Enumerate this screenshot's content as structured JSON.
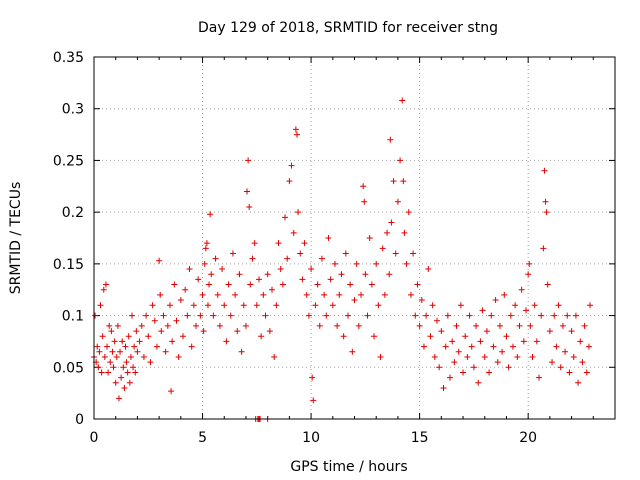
{
  "chart_data": {
    "type": "scatter",
    "title": "Day 129 of 2018, SRMTID for receiver stng",
    "xlabel": "GPS time / hours",
    "ylabel": "SRMTID / TECUs",
    "xlim": [
      0,
      24
    ],
    "ylim": [
      0,
      0.35
    ],
    "xticks": [
      0,
      5,
      10,
      15,
      20
    ],
    "yticks": [
      0,
      0.05,
      0.1,
      0.15,
      0.2,
      0.25,
      0.3,
      0.35
    ],
    "xtick_labels": [
      "0",
      "5",
      "10",
      "15",
      "20"
    ],
    "ytick_labels": [
      "0",
      "0.05",
      "0.1",
      "0.15",
      "0.2",
      "0.25",
      "0.3",
      "0.35"
    ],
    "grid": true,
    "legend": "none",
    "marker": "plus",
    "color": "#e00000",
    "series": [
      {
        "values": [
          [
            0.0,
            0.06
          ],
          [
            0.05,
            0.1
          ],
          [
            0.1,
            0.055
          ],
          [
            0.15,
            0.07
          ],
          [
            0.2,
            0.05
          ],
          [
            0.25,
            0.065
          ],
          [
            0.3,
            0.11
          ],
          [
            0.35,
            0.045
          ],
          [
            0.4,
            0.08
          ],
          [
            0.45,
            0.125
          ],
          [
            0.5,
            0.06
          ],
          [
            0.55,
            0.13
          ],
          [
            0.6,
            0.07
          ],
          [
            0.65,
            0.045
          ],
          [
            0.7,
            0.09
          ],
          [
            0.75,
            0.055
          ],
          [
            0.8,
            0.085
          ],
          [
            0.85,
            0.065
          ],
          [
            0.9,
            0.05
          ],
          [
            0.95,
            0.075
          ],
          [
            1.0,
            0.035
          ],
          [
            1.05,
            0.06
          ],
          [
            1.1,
            0.09
          ],
          [
            1.15,
            0.02
          ],
          [
            1.2,
            0.065
          ],
          [
            1.25,
            0.04
          ],
          [
            1.3,
            0.075
          ],
          [
            1.35,
            0.05
          ],
          [
            1.4,
            0.03
          ],
          [
            1.45,
            0.07
          ],
          [
            1.5,
            0.055
          ],
          [
            1.55,
            0.045
          ],
          [
            1.6,
            0.08
          ],
          [
            1.65,
            0.035
          ],
          [
            1.7,
            0.06
          ],
          [
            1.75,
            0.1
          ],
          [
            1.8,
            0.05
          ],
          [
            1.85,
            0.07
          ],
          [
            1.9,
            0.045
          ],
          [
            1.95,
            0.085
          ],
          [
            2.0,
            0.065
          ],
          [
            2.1,
            0.075
          ],
          [
            2.2,
            0.09
          ],
          [
            2.3,
            0.06
          ],
          [
            2.4,
            0.1
          ],
          [
            2.5,
            0.08
          ],
          [
            2.6,
            0.055
          ],
          [
            2.7,
            0.11
          ],
          [
            2.8,
            0.095
          ],
          [
            2.9,
            0.07
          ],
          [
            3.0,
            0.153
          ],
          [
            3.05,
            0.12
          ],
          [
            3.1,
            0.085
          ],
          [
            3.2,
            0.1
          ],
          [
            3.3,
            0.065
          ],
          [
            3.4,
            0.09
          ],
          [
            3.5,
            0.11
          ],
          [
            3.55,
            0.027
          ],
          [
            3.6,
            0.075
          ],
          [
            3.7,
            0.13
          ],
          [
            3.8,
            0.095
          ],
          [
            3.9,
            0.06
          ],
          [
            4.0,
            0.115
          ],
          [
            4.1,
            0.08
          ],
          [
            4.2,
            0.125
          ],
          [
            4.3,
            0.1
          ],
          [
            4.4,
            0.145
          ],
          [
            4.5,
            0.07
          ],
          [
            4.6,
            0.11
          ],
          [
            4.7,
            0.09
          ],
          [
            4.8,
            0.135
          ],
          [
            4.9,
            0.1
          ],
          [
            5.0,
            0.12
          ],
          [
            5.05,
            0.085
          ],
          [
            5.1,
            0.15
          ],
          [
            5.15,
            0.165
          ],
          [
            5.2,
            0.17
          ],
          [
            5.25,
            0.11
          ],
          [
            5.3,
            0.13
          ],
          [
            5.35,
            0.198
          ],
          [
            5.4,
            0.14
          ],
          [
            5.5,
            0.1
          ],
          [
            5.6,
            0.155
          ],
          [
            5.7,
            0.12
          ],
          [
            5.8,
            0.09
          ],
          [
            5.9,
            0.145
          ],
          [
            6.0,
            0.11
          ],
          [
            6.1,
            0.075
          ],
          [
            6.2,
            0.13
          ],
          [
            6.3,
            0.1
          ],
          [
            6.4,
            0.16
          ],
          [
            6.5,
            0.12
          ],
          [
            6.6,
            0.085
          ],
          [
            6.7,
            0.14
          ],
          [
            6.8,
            0.065
          ],
          [
            6.9,
            0.11
          ],
          [
            7.0,
            0.09
          ],
          [
            7.05,
            0.22
          ],
          [
            7.1,
            0.25
          ],
          [
            7.15,
            0.205
          ],
          [
            7.2,
            0.13
          ],
          [
            7.3,
            0.155
          ],
          [
            7.4,
            0.17
          ],
          [
            7.5,
            0.11
          ],
          [
            7.6,
            0.135
          ],
          [
            7.7,
            0.08
          ],
          [
            7.8,
            0.12
          ],
          [
            7.9,
            0.1
          ],
          [
            8.0,
            0.14
          ],
          [
            8.1,
            0.085
          ],
          [
            8.2,
            0.125
          ],
          [
            8.3,
            0.06
          ],
          [
            8.4,
            0.11
          ],
          [
            8.5,
            0.17
          ],
          [
            8.6,
            0.145
          ],
          [
            8.7,
            0.13
          ],
          [
            8.8,
            0.195
          ],
          [
            8.9,
            0.155
          ],
          [
            9.0,
            0.23
          ],
          [
            9.1,
            0.245
          ],
          [
            9.2,
            0.18
          ],
          [
            9.3,
            0.28
          ],
          [
            9.35,
            0.275
          ],
          [
            9.4,
            0.2
          ],
          [
            9.5,
            0.16
          ],
          [
            9.6,
            0.135
          ],
          [
            9.7,
            0.17
          ],
          [
            9.8,
            0.12
          ],
          [
            9.9,
            0.1
          ],
          [
            10.0,
            0.145
          ],
          [
            10.05,
            0.04
          ],
          [
            10.1,
            0.018
          ],
          [
            10.2,
            0.11
          ],
          [
            10.3,
            0.13
          ],
          [
            10.4,
            0.09
          ],
          [
            10.5,
            0.155
          ],
          [
            10.6,
            0.12
          ],
          [
            10.7,
            0.1
          ],
          [
            10.8,
            0.175
          ],
          [
            10.9,
            0.135
          ],
          [
            11.0,
            0.11
          ],
          [
            11.1,
            0.15
          ],
          [
            11.2,
            0.09
          ],
          [
            11.3,
            0.12
          ],
          [
            11.4,
            0.14
          ],
          [
            11.5,
            0.08
          ],
          [
            11.6,
            0.16
          ],
          [
            11.7,
            0.1
          ],
          [
            11.8,
            0.13
          ],
          [
            11.9,
            0.065
          ],
          [
            12.0,
            0.115
          ],
          [
            12.1,
            0.15
          ],
          [
            12.2,
            0.09
          ],
          [
            12.3,
            0.12
          ],
          [
            12.4,
            0.225
          ],
          [
            12.45,
            0.21
          ],
          [
            12.5,
            0.14
          ],
          [
            12.6,
            0.1
          ],
          [
            12.7,
            0.175
          ],
          [
            12.8,
            0.13
          ],
          [
            12.9,
            0.08
          ],
          [
            13.0,
            0.15
          ],
          [
            13.1,
            0.11
          ],
          [
            13.2,
            0.06
          ],
          [
            13.3,
            0.165
          ],
          [
            13.4,
            0.12
          ],
          [
            13.5,
            0.18
          ],
          [
            13.6,
            0.14
          ],
          [
            13.65,
            0.27
          ],
          [
            13.7,
            0.19
          ],
          [
            13.8,
            0.23
          ],
          [
            13.9,
            0.16
          ],
          [
            14.0,
            0.21
          ],
          [
            14.1,
            0.25
          ],
          [
            14.2,
            0.308
          ],
          [
            14.25,
            0.23
          ],
          [
            14.3,
            0.18
          ],
          [
            14.4,
            0.15
          ],
          [
            14.5,
            0.2
          ],
          [
            14.6,
            0.12
          ],
          [
            14.7,
            0.16
          ],
          [
            14.8,
            0.1
          ],
          [
            14.9,
            0.13
          ],
          [
            15.0,
            0.09
          ],
          [
            15.1,
            0.115
          ],
          [
            15.2,
            0.07
          ],
          [
            15.3,
            0.1
          ],
          [
            15.4,
            0.145
          ],
          [
            15.5,
            0.08
          ],
          [
            15.6,
            0.11
          ],
          [
            15.7,
            0.06
          ],
          [
            15.8,
            0.095
          ],
          [
            15.9,
            0.05
          ],
          [
            16.0,
            0.085
          ],
          [
            16.1,
            0.03
          ],
          [
            16.2,
            0.07
          ],
          [
            16.3,
            0.1
          ],
          [
            16.4,
            0.04
          ],
          [
            16.5,
            0.075
          ],
          [
            16.6,
            0.055
          ],
          [
            16.7,
            0.09
          ],
          [
            16.8,
            0.065
          ],
          [
            16.9,
            0.11
          ],
          [
            17.0,
            0.045
          ],
          [
            17.1,
            0.08
          ],
          [
            17.2,
            0.06
          ],
          [
            17.3,
            0.1
          ],
          [
            17.4,
            0.07
          ],
          [
            17.5,
            0.05
          ],
          [
            17.6,
            0.09
          ],
          [
            17.7,
            0.035
          ],
          [
            17.8,
            0.075
          ],
          [
            17.9,
            0.105
          ],
          [
            18.0,
            0.06
          ],
          [
            18.1,
            0.085
          ],
          [
            18.2,
            0.045
          ],
          [
            18.3,
            0.1
          ],
          [
            18.4,
            0.07
          ],
          [
            18.5,
            0.115
          ],
          [
            18.6,
            0.055
          ],
          [
            18.7,
            0.09
          ],
          [
            18.8,
            0.065
          ],
          [
            18.9,
            0.12
          ],
          [
            19.0,
            0.08
          ],
          [
            19.1,
            0.05
          ],
          [
            19.2,
            0.1
          ],
          [
            19.3,
            0.07
          ],
          [
            19.4,
            0.11
          ],
          [
            19.5,
            0.06
          ],
          [
            19.6,
            0.09
          ],
          [
            19.7,
            0.125
          ],
          [
            19.8,
            0.075
          ],
          [
            19.9,
            0.105
          ],
          [
            20.0,
            0.14
          ],
          [
            20.05,
            0.15
          ],
          [
            20.1,
            0.09
          ],
          [
            20.2,
            0.06
          ],
          [
            20.3,
            0.11
          ],
          [
            20.4,
            0.075
          ],
          [
            20.5,
            0.04
          ],
          [
            20.6,
            0.1
          ],
          [
            20.7,
            0.165
          ],
          [
            20.75,
            0.24
          ],
          [
            20.8,
            0.21
          ],
          [
            20.85,
            0.2
          ],
          [
            20.9,
            0.13
          ],
          [
            21.0,
            0.085
          ],
          [
            21.1,
            0.055
          ],
          [
            21.2,
            0.1
          ],
          [
            21.3,
            0.07
          ],
          [
            21.4,
            0.11
          ],
          [
            21.5,
            0.05
          ],
          [
            21.6,
            0.09
          ],
          [
            21.7,
            0.065
          ],
          [
            21.8,
            0.1
          ],
          [
            21.9,
            0.045
          ],
          [
            22.0,
            0.085
          ],
          [
            22.1,
            0.06
          ],
          [
            22.2,
            0.1
          ],
          [
            22.3,
            0.035
          ],
          [
            22.4,
            0.075
          ],
          [
            22.5,
            0.055
          ],
          [
            22.6,
            0.09
          ],
          [
            22.7,
            0.045
          ],
          [
            22.8,
            0.07
          ],
          [
            22.85,
            0.11
          ]
        ]
      }
    ],
    "zero_markers": [
      [
        7.45,
        0.0
      ],
      [
        7.55,
        0.0
      ],
      [
        7.6,
        0.0
      ],
      [
        7.65,
        0.0
      ],
      [
        8.0,
        0.0
      ]
    ]
  }
}
